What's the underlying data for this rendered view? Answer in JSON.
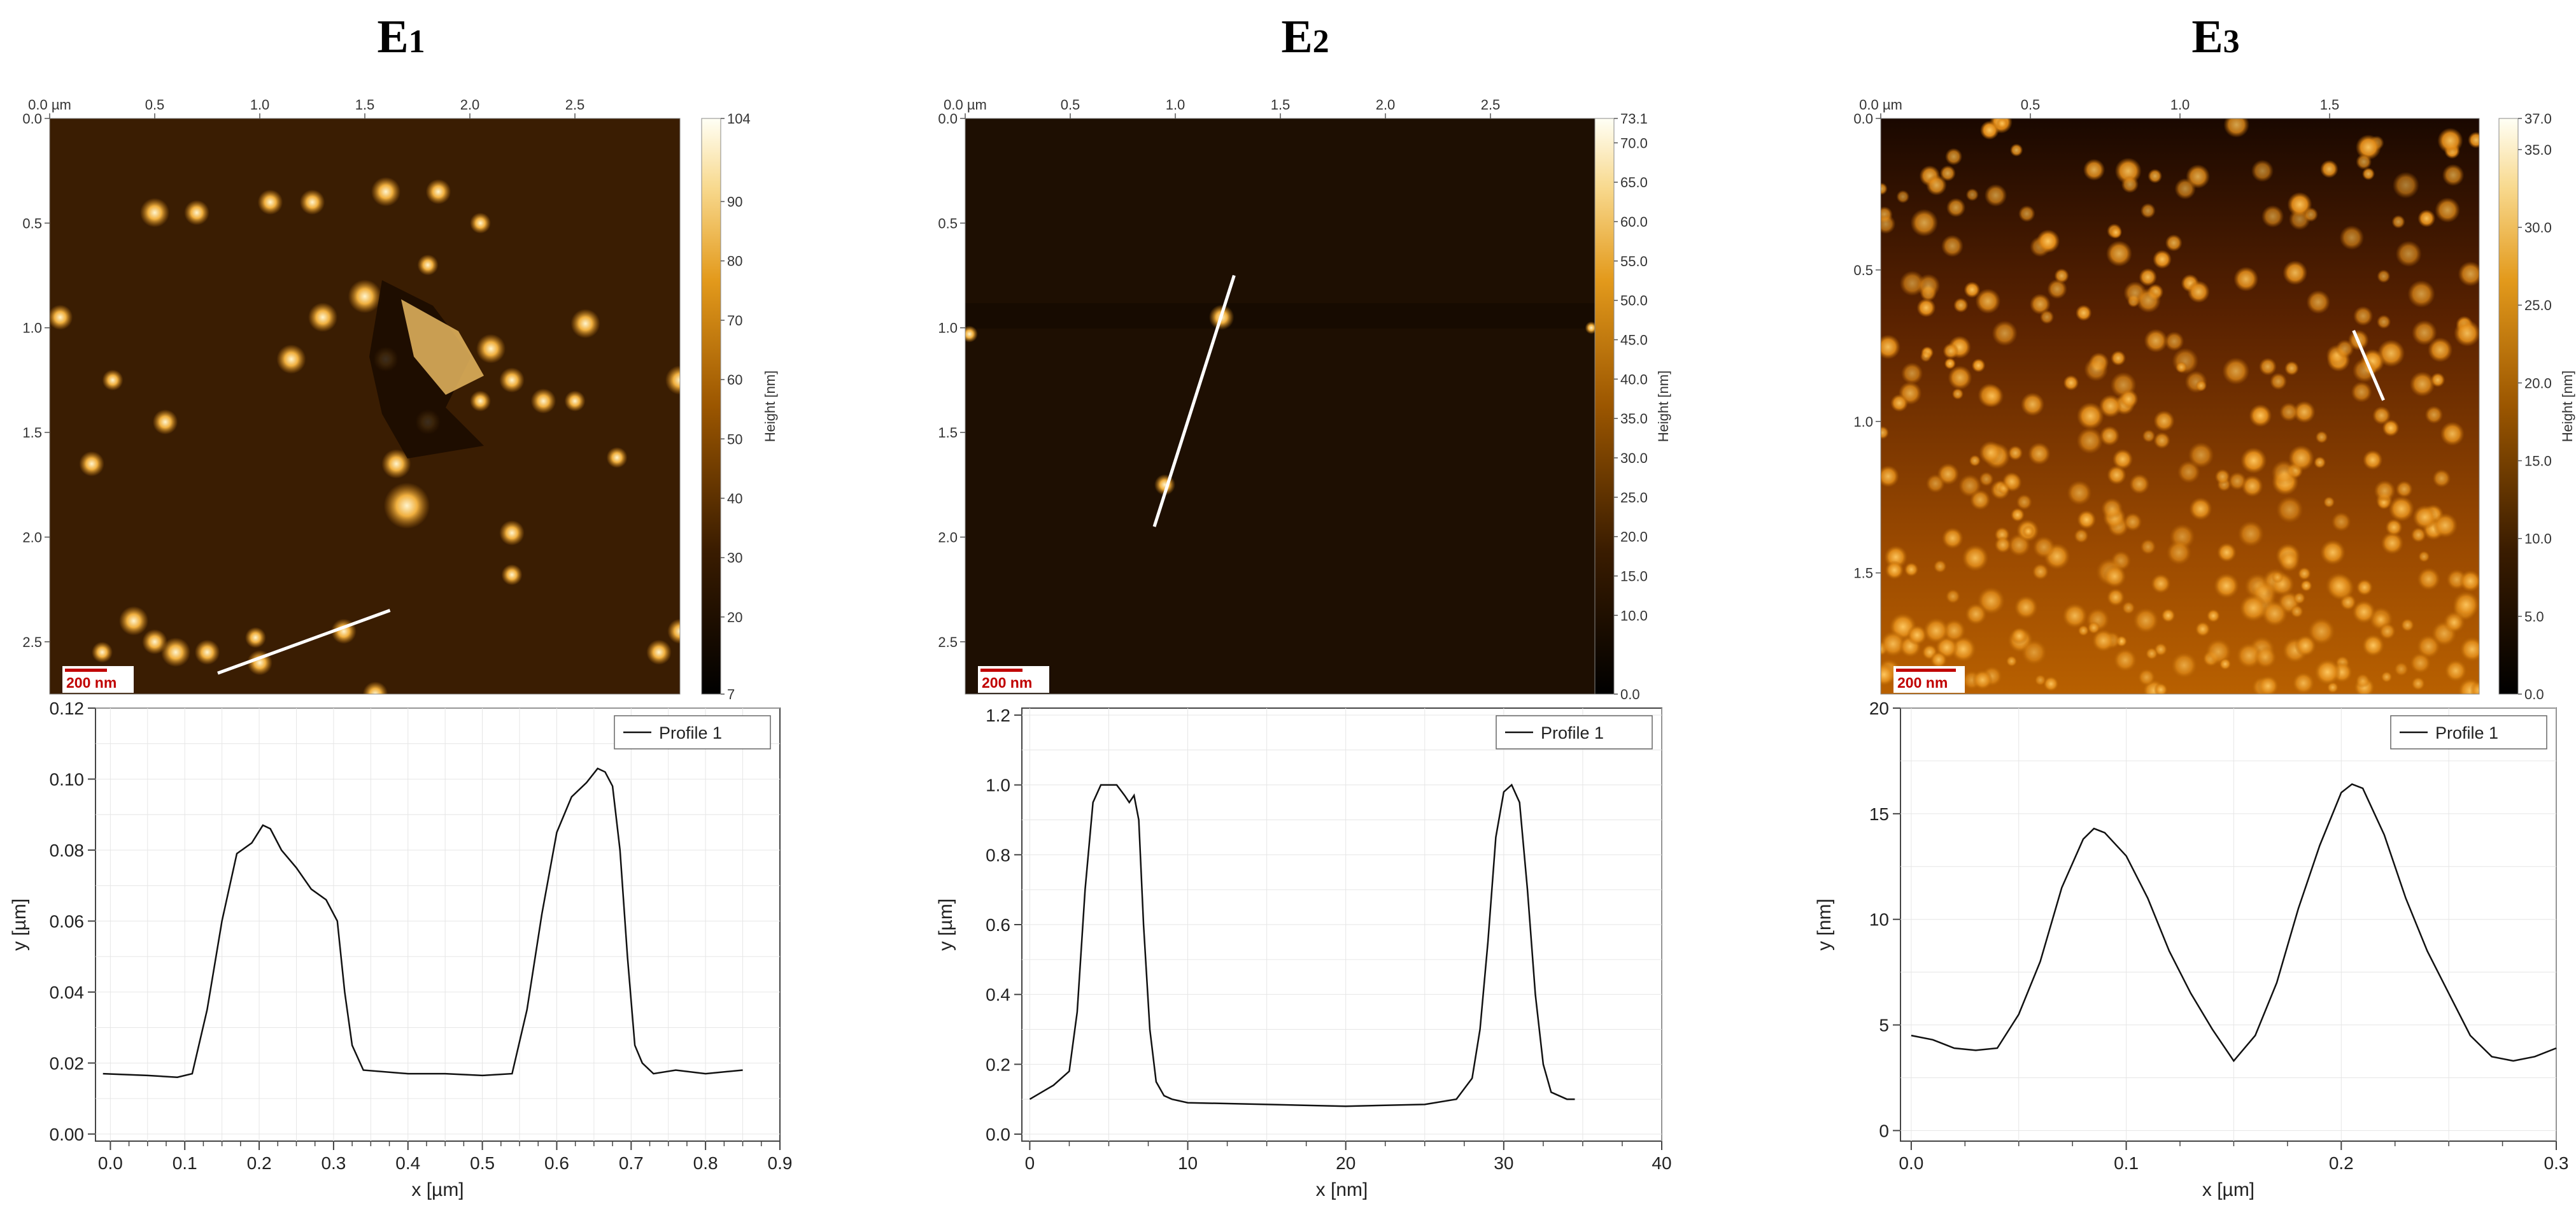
{
  "chart_data": [
    {
      "id": "E1",
      "title": "E",
      "title_sub": "1",
      "afm_image": {
        "x_ticks": [
          "0.0 µm",
          "0.5",
          "1.0",
          "1.5",
          "2.0",
          "2.5"
        ],
        "x_tick_values": [
          0,
          0.5,
          1.0,
          1.5,
          2.0,
          2.5
        ],
        "y_ticks": [
          "0.0",
          "0.5",
          "1.0",
          "1.5",
          "2.0",
          "2.5"
        ],
        "y_tick_values": [
          0,
          0.5,
          1.0,
          1.5,
          2.0,
          2.5
        ],
        "x_range": [
          0,
          3.0
        ],
        "y_range": [
          0,
          2.75
        ],
        "scale_bar": "200 nm",
        "scale_bar_um": 0.2,
        "colorbar": {
          "label": "Height [nm]",
          "min": 7,
          "max": 104,
          "tick_labels": [
            "104",
            "90",
            "80",
            "70",
            "60",
            "50",
            "40",
            "30",
            "20",
            "7"
          ],
          "tick_values": [
            104,
            90,
            80,
            70,
            60,
            50,
            40,
            30,
            20,
            7
          ]
        },
        "profile_line": {
          "x1": 0.8,
          "y1": 2.65,
          "x2": 1.62,
          "y2": 2.35
        },
        "particles": [
          [
            0.5,
            0.45,
            0.07
          ],
          [
            0.7,
            0.45,
            0.06
          ],
          [
            1.05,
            0.4,
            0.06
          ],
          [
            1.25,
            0.4,
            0.06
          ],
          [
            1.6,
            0.35,
            0.07
          ],
          [
            1.85,
            0.35,
            0.06
          ],
          [
            2.05,
            0.5,
            0.05
          ],
          [
            1.5,
            0.85,
            0.08
          ],
          [
            1.3,
            0.95,
            0.07
          ],
          [
            1.15,
            1.15,
            0.07
          ],
          [
            1.6,
            1.15,
            0.06
          ],
          [
            0.05,
            0.95,
            0.06
          ],
          [
            0.3,
            1.25,
            0.05
          ],
          [
            0.55,
            1.45,
            0.06
          ],
          [
            0.2,
            1.65,
            0.06
          ],
          [
            2.1,
            1.1,
            0.07
          ],
          [
            2.55,
            0.98,
            0.07
          ],
          [
            2.2,
            1.25,
            0.06
          ],
          [
            2.35,
            1.35,
            0.06
          ],
          [
            2.5,
            1.35,
            0.05
          ],
          [
            3.0,
            1.25,
            0.07
          ],
          [
            1.8,
            1.45,
            0.06
          ],
          [
            1.65,
            1.65,
            0.07
          ],
          [
            2.7,
            1.62,
            0.05
          ],
          [
            1.7,
            1.85,
            0.11
          ],
          [
            2.2,
            1.98,
            0.06
          ],
          [
            2.2,
            2.18,
            0.05
          ],
          [
            0.4,
            2.4,
            0.07
          ],
          [
            0.5,
            2.5,
            0.06
          ],
          [
            0.6,
            2.55,
            0.07
          ],
          [
            0.75,
            2.55,
            0.06
          ],
          [
            1.0,
            2.6,
            0.06
          ],
          [
            1.4,
            2.45,
            0.06
          ],
          [
            0.25,
            2.55,
            0.05
          ],
          [
            1.55,
            2.75,
            0.06
          ],
          [
            1.25,
            2.8,
            0.05
          ],
          [
            2.05,
            2.85,
            0.06
          ],
          [
            2.35,
            2.83,
            0.05
          ],
          [
            2.9,
            2.55,
            0.06
          ],
          [
            3.0,
            2.45,
            0.06
          ],
          [
            1.8,
            0.7,
            0.05
          ],
          [
            2.05,
            1.35,
            0.05
          ],
          [
            0.98,
            2.48,
            0.05
          ]
        ]
      },
      "profile": {
        "type": "line",
        "legend": "Profile 1",
        "xlabel": "x [µm]",
        "ylabel": "y [µm]",
        "x_range": [
          -0.02,
          0.9
        ],
        "y_range": [
          -0.002,
          0.12
        ],
        "x_tick_labels": [
          "0.0",
          "0.1",
          "0.2",
          "0.3",
          "0.4",
          "0.5",
          "0.6",
          "0.7",
          "0.8",
          "0.9"
        ],
        "x_tick_values": [
          0.0,
          0.1,
          0.2,
          0.3,
          0.4,
          0.5,
          0.6,
          0.7,
          0.8,
          0.9
        ],
        "y_tick_labels": [
          "0.00",
          "0.02",
          "0.04",
          "0.06",
          "0.08",
          "0.10",
          "0.12"
        ],
        "y_tick_values": [
          0.0,
          0.02,
          0.04,
          0.06,
          0.08,
          0.1,
          0.12
        ],
        "x": [
          -0.01,
          0.05,
          0.09,
          0.11,
          0.13,
          0.15,
          0.17,
          0.19,
          0.205,
          0.215,
          0.23,
          0.25,
          0.27,
          0.29,
          0.305,
          0.315,
          0.325,
          0.34,
          0.4,
          0.45,
          0.5,
          0.54,
          0.56,
          0.58,
          0.6,
          0.62,
          0.64,
          0.655,
          0.665,
          0.675,
          0.685,
          0.695,
          0.705,
          0.715,
          0.73,
          0.76,
          0.8,
          0.85
        ],
        "y": [
          0.017,
          0.0165,
          0.016,
          0.017,
          0.035,
          0.06,
          0.079,
          0.082,
          0.087,
          0.086,
          0.08,
          0.075,
          0.069,
          0.066,
          0.06,
          0.04,
          0.025,
          0.018,
          0.017,
          0.017,
          0.0165,
          0.017,
          0.035,
          0.062,
          0.085,
          0.095,
          0.099,
          0.103,
          0.102,
          0.098,
          0.08,
          0.05,
          0.025,
          0.02,
          0.017,
          0.018,
          0.017,
          0.018
        ]
      }
    },
    {
      "id": "E2",
      "title": "E",
      "title_sub": "2",
      "afm_image": {
        "x_ticks": [
          "0.0 µm",
          "0.5",
          "1.0",
          "1.5",
          "2.0",
          "2.5"
        ],
        "x_tick_values": [
          0,
          0.5,
          1.0,
          1.5,
          2.0,
          2.5
        ],
        "y_ticks": [
          "0.0",
          "0.5",
          "1.0",
          "1.5",
          "2.0",
          "2.5"
        ],
        "y_tick_values": [
          0,
          0.5,
          1.0,
          1.5,
          2.0,
          2.5
        ],
        "x_range": [
          0,
          3.0
        ],
        "y_range": [
          0,
          2.75
        ],
        "scale_bar": "200 nm",
        "scale_bar_um": 0.2,
        "colorbar": {
          "label": "Height [nm]",
          "min": 0.0,
          "max": 73.1,
          "tick_labels": [
            "73.1",
            "70.0",
            "65.0",
            "60.0",
            "55.0",
            "50.0",
            "45.0",
            "40.0",
            "35.0",
            "30.0",
            "25.0",
            "20.0",
            "15.0",
            "10.0",
            "0.0"
          ],
          "tick_values": [
            73.1,
            70,
            65,
            60,
            55,
            50,
            45,
            40,
            35,
            30,
            25,
            20,
            15,
            10,
            0
          ]
        },
        "profile_line": {
          "x1": 0.9,
          "y1": 1.95,
          "x2": 1.28,
          "y2": 0.75
        },
        "particles": [
          [
            1.22,
            0.95,
            0.06
          ],
          [
            0.95,
            1.75,
            0.05
          ],
          [
            0.02,
            1.03,
            0.04
          ],
          [
            2.98,
            1.0,
            0.03
          ]
        ]
      },
      "profile": {
        "type": "line",
        "legend": "Profile 1",
        "xlabel": "x [nm]",
        "ylabel": "y [µm]",
        "x_range": [
          -0.5,
          40
        ],
        "y_range": [
          -0.02,
          1.22
        ],
        "x_tick_labels": [
          "0",
          "10",
          "20",
          "30",
          "40"
        ],
        "x_tick_values": [
          0,
          10,
          20,
          30,
          40
        ],
        "y_tick_labels": [
          "0.0",
          "0.2",
          "0.4",
          "0.6",
          "0.8",
          "1.0",
          "1.2"
        ],
        "y_tick_values": [
          0,
          0.2,
          0.4,
          0.6,
          0.8,
          1.0,
          1.2
        ],
        "x": [
          0,
          1.5,
          2.5,
          3.0,
          3.5,
          4.0,
          4.5,
          5.0,
          5.5,
          6.0,
          6.3,
          6.6,
          6.9,
          7.2,
          7.6,
          8.0,
          8.5,
          9.0,
          10,
          15,
          20,
          25,
          27,
          28,
          28.5,
          29,
          29.5,
          30,
          30.5,
          31,
          31.5,
          32,
          32.5,
          33,
          34,
          34.5
        ],
        "y": [
          0.1,
          0.14,
          0.18,
          0.35,
          0.7,
          0.95,
          1.0,
          1.0,
          1.0,
          0.97,
          0.95,
          0.97,
          0.9,
          0.6,
          0.3,
          0.15,
          0.11,
          0.1,
          0.09,
          0.085,
          0.08,
          0.085,
          0.1,
          0.16,
          0.3,
          0.55,
          0.85,
          0.98,
          1.0,
          0.95,
          0.7,
          0.4,
          0.2,
          0.12,
          0.1,
          0.1
        ]
      }
    },
    {
      "id": "E3",
      "title": "E",
      "title_sub": "3",
      "afm_image": {
        "x_ticks": [
          "0.0 µm",
          "0.5",
          "1.0",
          "1.5"
        ],
        "x_tick_values": [
          0,
          0.5,
          1.0,
          1.5
        ],
        "y_ticks": [
          "0.0",
          "0.5",
          "1.0",
          "1.5"
        ],
        "y_tick_values": [
          0,
          0.5,
          1.0,
          1.5
        ],
        "x_range": [
          0,
          2.0
        ],
        "y_range": [
          0,
          1.9
        ],
        "scale_bar": "200 nm",
        "scale_bar_um": 0.2,
        "colorbar": {
          "label": "Height [nm]",
          "min": 0.0,
          "max": 37.0,
          "tick_labels": [
            "37.0",
            "35.0",
            "30.0",
            "25.0",
            "20.0",
            "15.0",
            "10.0",
            "5.0",
            "0.0"
          ],
          "tick_values": [
            37,
            35,
            30,
            25,
            20,
            15,
            10,
            5,
            0
          ]
        },
        "profile_line": {
          "x1": 1.58,
          "y1": 0.7,
          "x2": 1.68,
          "y2": 0.93
        }
      },
      "profile": {
        "type": "line",
        "legend": "Profile 1",
        "xlabel": "x [µm]",
        "ylabel": "y [nm]",
        "x_range": [
          -0.005,
          0.3
        ],
        "y_range": [
          -0.5,
          20
        ],
        "x_tick_labels": [
          "0.0",
          "0.1",
          "0.2",
          "0.3"
        ],
        "x_tick_values": [
          0.0,
          0.1,
          0.2,
          0.3
        ],
        "y_tick_labels": [
          "0",
          "5",
          "10",
          "15",
          "20"
        ],
        "y_tick_values": [
          0,
          5,
          10,
          15,
          20
        ],
        "x": [
          0,
          0.01,
          0.02,
          0.03,
          0.04,
          0.05,
          0.06,
          0.07,
          0.08,
          0.085,
          0.09,
          0.1,
          0.11,
          0.12,
          0.13,
          0.14,
          0.15,
          0.16,
          0.17,
          0.18,
          0.19,
          0.2,
          0.205,
          0.21,
          0.22,
          0.23,
          0.24,
          0.25,
          0.26,
          0.27,
          0.28,
          0.29,
          0.3
        ],
        "y": [
          4.5,
          4.3,
          3.9,
          3.8,
          3.9,
          5.5,
          8.0,
          11.5,
          13.8,
          14.3,
          14.1,
          13.0,
          11.0,
          8.5,
          6.5,
          4.8,
          3.3,
          4.5,
          7.0,
          10.5,
          13.5,
          16.0,
          16.4,
          16.2,
          14.0,
          11.0,
          8.5,
          6.5,
          4.5,
          3.5,
          3.3,
          3.5,
          3.9
        ]
      }
    }
  ]
}
